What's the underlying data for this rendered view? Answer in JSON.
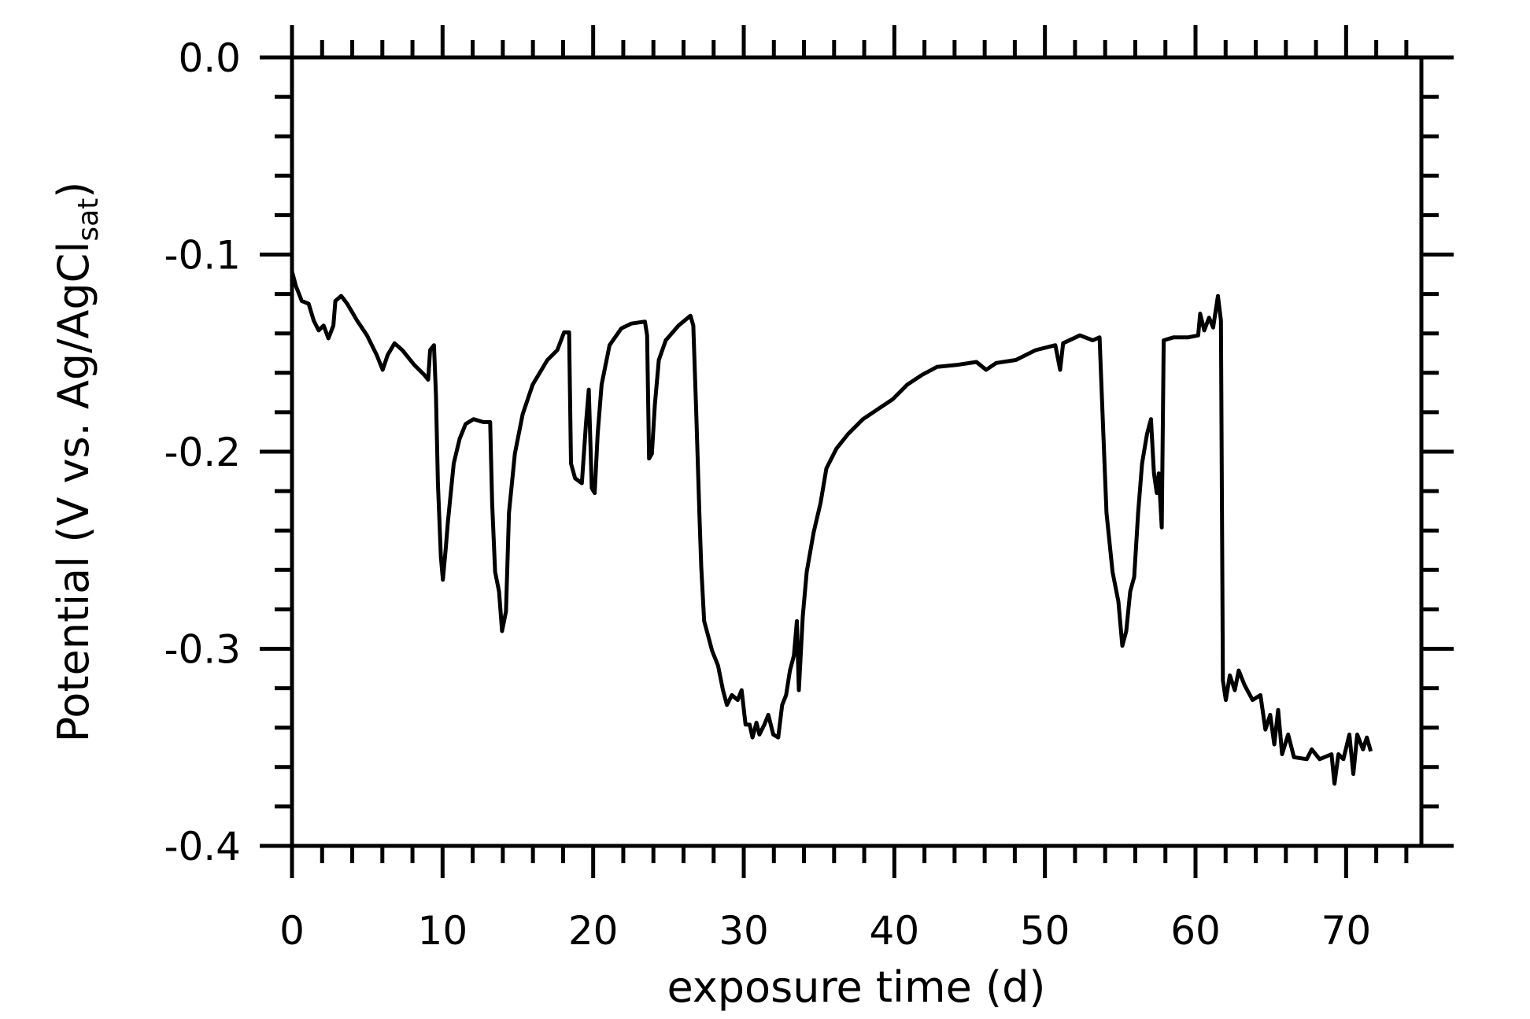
{
  "chart_data": {
    "type": "line",
    "xlabel": "exposure time (d)",
    "ylabel": [
      "Potential (V vs. Ag/AgCl",
      "sat",
      ")"
    ],
    "xlim": [
      0,
      75
    ],
    "ylim": [
      -0.4,
      0
    ],
    "xticks": [
      0,
      10,
      20,
      30,
      40,
      50,
      60,
      70
    ],
    "xminor": [
      2,
      4,
      6,
      8,
      12,
      14,
      16,
      18,
      22,
      24,
      26,
      28,
      32,
      34,
      36,
      38,
      42,
      44,
      46,
      48,
      52,
      54,
      56,
      58,
      62,
      64,
      66,
      68,
      72,
      74
    ],
    "yticks": [
      {
        "value": 0,
        "label": "0.0"
      },
      -0.1,
      -0.2,
      -0.3,
      -0.4
    ],
    "yminor": [
      -0.02,
      -0.04,
      -0.06,
      -0.08,
      -0.12,
      -0.14,
      -0.16,
      -0.18,
      -0.22,
      -0.24,
      -0.26,
      -0.28,
      -0.32,
      -0.34,
      -0.36,
      -0.38
    ],
    "x": [
      0,
      0.26,
      0.65,
      1.11,
      1.44,
      1.77,
      2.1,
      2.42,
      2.75,
      2.88,
      3.27,
      3.67,
      4.32,
      4.98,
      5.63,
      6.02,
      6.35,
      6.81,
      7.33,
      8.12,
      8.78,
      9.04,
      9.17,
      9.43,
      9.56,
      9.69,
      9.89,
      10.02,
      10.22,
      10.35,
      10.74,
      11.13,
      11.53,
      12.05,
      12.7,
      13.16,
      13.29,
      13.49,
      13.75,
      13.95,
      14.21,
      14.41,
      14.8,
      15.32,
      15.98,
      16.96,
      17.62,
      18.07,
      18.4,
      18.53,
      18.8,
      19.25,
      19.52,
      19.71,
      19.91,
      20.1,
      20.3,
      20.56,
      21.09,
      21.87,
      22.53,
      23.44,
      23.58,
      23.71,
      23.9,
      24.1,
      24.36,
      24.82,
      25.67,
      26.46,
      26.65,
      26.85,
      27.05,
      27.18,
      27.37,
      27.64,
      27.9,
      28.29,
      28.62,
      28.88,
      29.21,
      29.6,
      29.86,
      30.12,
      30.39,
      30.58,
      30.84,
      31.04,
      31.37,
      31.63,
      31.96,
      32.29,
      32.55,
      32.81,
      33.07,
      33.33,
      33.53,
      33.66,
      33.92,
      34.18,
      34.64,
      35.1,
      35.49,
      36.15,
      36.93,
      37.92,
      38.9,
      39.88,
      40.86,
      41.85,
      42.83,
      44.14,
      45.45,
      46.1,
      46.76,
      48.07,
      49.38,
      50.69,
      51.01,
      51.21,
      52.32,
      53.18,
      53.63,
      53.83,
      54.09,
      54.49,
      54.88,
      55.14,
      55.4,
      55.66,
      55.93,
      56.19,
      56.45,
      56.78,
      57.04,
      57.24,
      57.43,
      57.56,
      57.76,
      57.89,
      58.55,
      59.53,
      60.18,
      60.31,
      60.58,
      60.9,
      61.17,
      61.49,
      61.69,
      61.82,
      62.01,
      62.28,
      62.61,
      62.87,
      63.26,
      63.79,
      64.31,
      64.64,
      64.96,
      65.23,
      65.49,
      65.75,
      66.15,
      66.54,
      67.39,
      67.72,
      68.24,
      69.03,
      69.23,
      69.49,
      69.82,
      70.22,
      70.48,
      70.74,
      71.12,
      71.38,
      71.64
    ],
    "series": [
      {
        "color": "#000000",
        "values": [
          -0.1085,
          -0.116,
          -0.1235,
          -0.125,
          -0.1335,
          -0.1385,
          -0.136,
          -0.1425,
          -0.136,
          -0.1235,
          -0.121,
          -0.125,
          -0.1335,
          -0.141,
          -0.151,
          -0.1585,
          -0.151,
          -0.145,
          -0.1485,
          -0.156,
          -0.161,
          -0.1635,
          -0.1485,
          -0.146,
          -0.171,
          -0.216,
          -0.2535,
          -0.265,
          -0.2485,
          -0.236,
          -0.206,
          -0.1935,
          -0.186,
          -0.1835,
          -0.185,
          -0.185,
          -0.226,
          -0.261,
          -0.271,
          -0.291,
          -0.281,
          -0.231,
          -0.201,
          -0.181,
          -0.166,
          -0.1535,
          -0.1485,
          -0.1395,
          -0.1395,
          -0.206,
          -0.2135,
          -0.216,
          -0.186,
          -0.1685,
          -0.2185,
          -0.221,
          -0.191,
          -0.166,
          -0.146,
          -0.1375,
          -0.135,
          -0.134,
          -0.141,
          -0.2035,
          -0.201,
          -0.176,
          -0.1535,
          -0.1435,
          -0.136,
          -0.131,
          -0.136,
          -0.181,
          -0.231,
          -0.2585,
          -0.286,
          -0.2935,
          -0.301,
          -0.3085,
          -0.321,
          -0.3285,
          -0.3235,
          -0.326,
          -0.321,
          -0.3385,
          -0.3385,
          -0.345,
          -0.3375,
          -0.3435,
          -0.3385,
          -0.3335,
          -0.3435,
          -0.345,
          -0.3285,
          -0.3235,
          -0.311,
          -0.3035,
          -0.286,
          -0.321,
          -0.2835,
          -0.261,
          -0.241,
          -0.226,
          -0.2085,
          -0.1985,
          -0.191,
          -0.1835,
          -0.1785,
          -0.1735,
          -0.166,
          -0.161,
          -0.157,
          -0.156,
          -0.1545,
          -0.1585,
          -0.155,
          -0.1535,
          -0.1485,
          -0.146,
          -0.1585,
          -0.145,
          -0.141,
          -0.1435,
          -0.142,
          -0.181,
          -0.231,
          -0.261,
          -0.276,
          -0.2985,
          -0.291,
          -0.271,
          -0.2635,
          -0.231,
          -0.206,
          -0.191,
          -0.1835,
          -0.211,
          -0.221,
          -0.211,
          -0.2385,
          -0.1435,
          -0.142,
          -0.142,
          -0.141,
          -0.13,
          -0.1385,
          -0.132,
          -0.137,
          -0.121,
          -0.1335,
          -0.316,
          -0.326,
          -0.3135,
          -0.321,
          -0.311,
          -0.3185,
          -0.326,
          -0.3235,
          -0.341,
          -0.3335,
          -0.3485,
          -0.331,
          -0.3535,
          -0.3435,
          -0.355,
          -0.356,
          -0.351,
          -0.356,
          -0.3535,
          -0.3685,
          -0.3535,
          -0.356,
          -0.3435,
          -0.3635,
          -0.3435,
          -0.351,
          -0.345,
          -0.352
        ]
      }
    ]
  }
}
